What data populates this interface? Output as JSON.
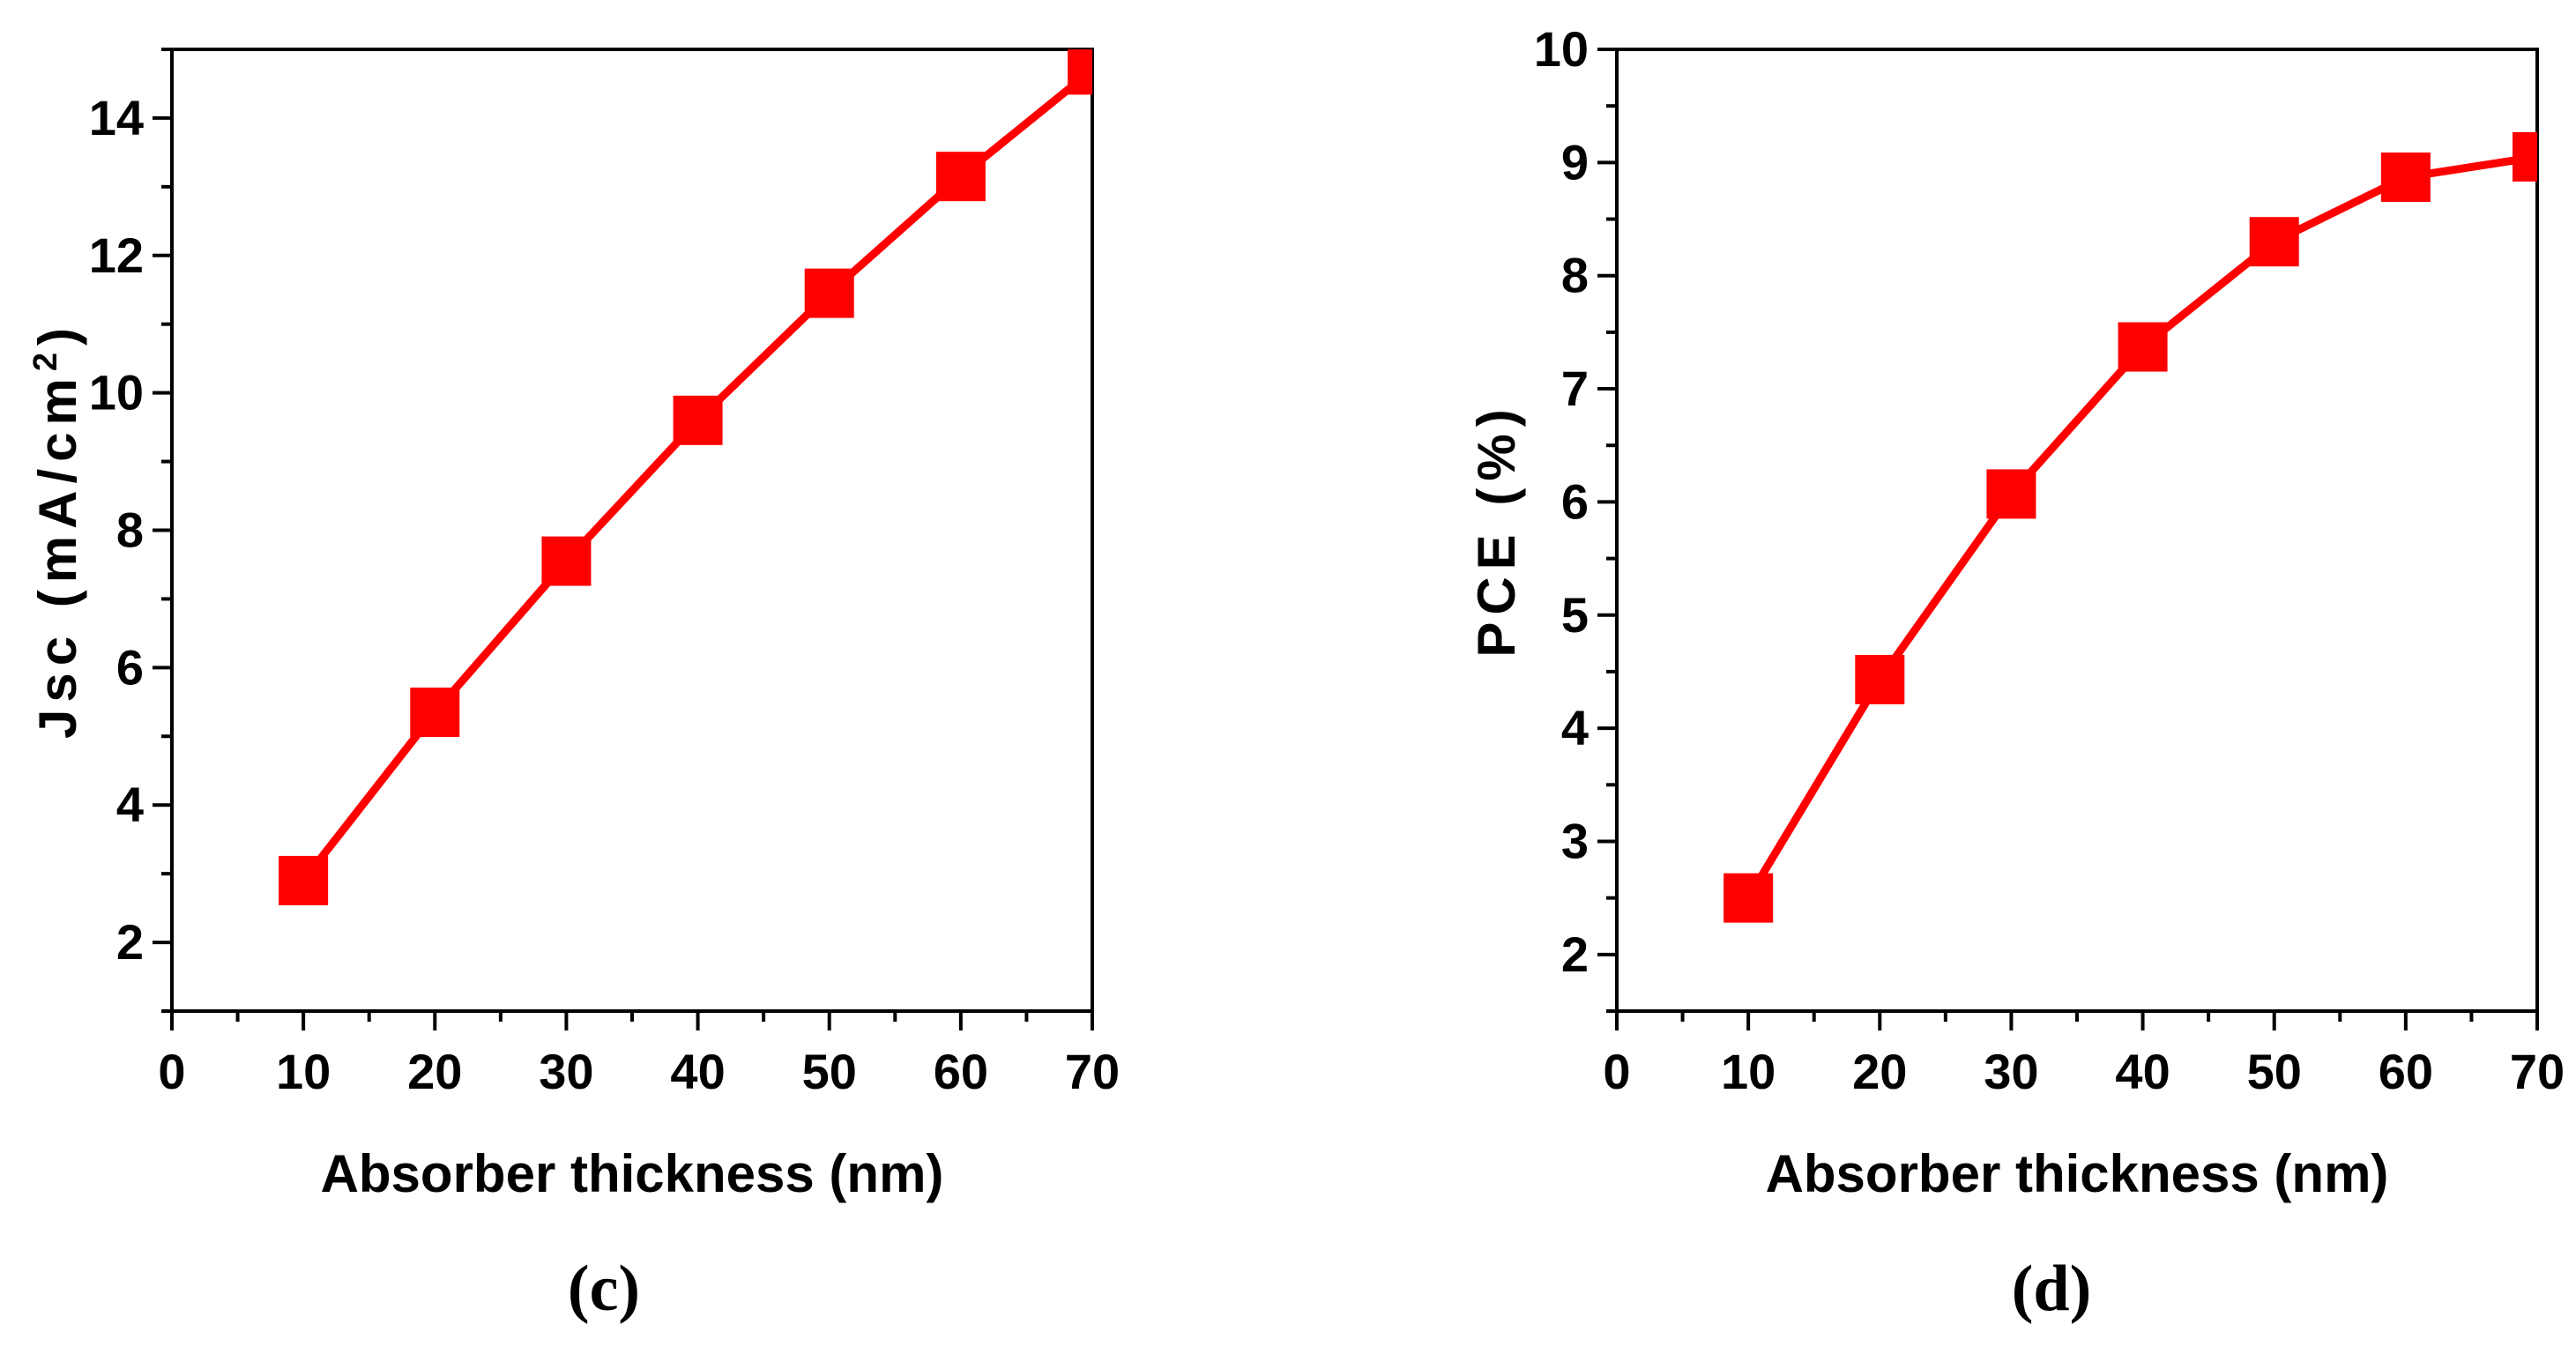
{
  "chart_data": [
    {
      "type": "line",
      "title": "",
      "xlabel": "Absorber thickness (nm)",
      "ylabel": "Jsc (mA/cm²)",
      "ylabel_main": "Jsc  (mA/cm",
      "ylabel_sup": "2",
      "ylabel_close": ")",
      "panel_label": "(c)",
      "xlim": [
        0,
        70
      ],
      "ylim": [
        1,
        15
      ],
      "xticks": [
        "0",
        "10",
        "20",
        "30",
        "40",
        "50",
        "60",
        "70"
      ],
      "xtick_values": [
        0,
        10,
        20,
        30,
        40,
        50,
        60,
        70
      ],
      "yticks": [
        "2",
        "4",
        "6",
        "8",
        "10",
        "12",
        "14"
      ],
      "ytick_values": [
        2,
        4,
        6,
        8,
        10,
        12,
        14
      ],
      "series": [
        {
          "name": "Jsc",
          "color": "#ff0000",
          "marker": "square",
          "x": [
            10,
            20,
            30,
            40,
            50,
            60,
            70
          ],
          "y": [
            2.9,
            5.35,
            7.55,
            9.6,
            11.45,
            13.15,
            14.7
          ]
        }
      ]
    },
    {
      "type": "line",
      "title": "",
      "xlabel": "Absorber thickness (nm)",
      "ylabel": "PCE (%)",
      "ylabel_main": "PCE  (%)",
      "panel_label": "(d)",
      "xlim": [
        0,
        70
      ],
      "ylim": [
        1.5,
        10
      ],
      "xticks": [
        "0",
        "10",
        "20",
        "30",
        "40",
        "50",
        "60",
        "70"
      ],
      "xtick_values": [
        0,
        10,
        20,
        30,
        40,
        50,
        60,
        70
      ],
      "yticks": [
        "2",
        "3",
        "4",
        "5",
        "6",
        "7",
        "8",
        "9",
        "10"
      ],
      "ytick_values": [
        2,
        3,
        4,
        5,
        6,
        7,
        8,
        9,
        10
      ],
      "series": [
        {
          "name": "PCE",
          "color": "#ff0000",
          "marker": "square",
          "x": [
            10,
            20,
            30,
            40,
            50,
            60,
            70
          ],
          "y": [
            2.5,
            4.43,
            6.07,
            7.37,
            8.3,
            8.87,
            9.05
          ]
        }
      ]
    }
  ]
}
